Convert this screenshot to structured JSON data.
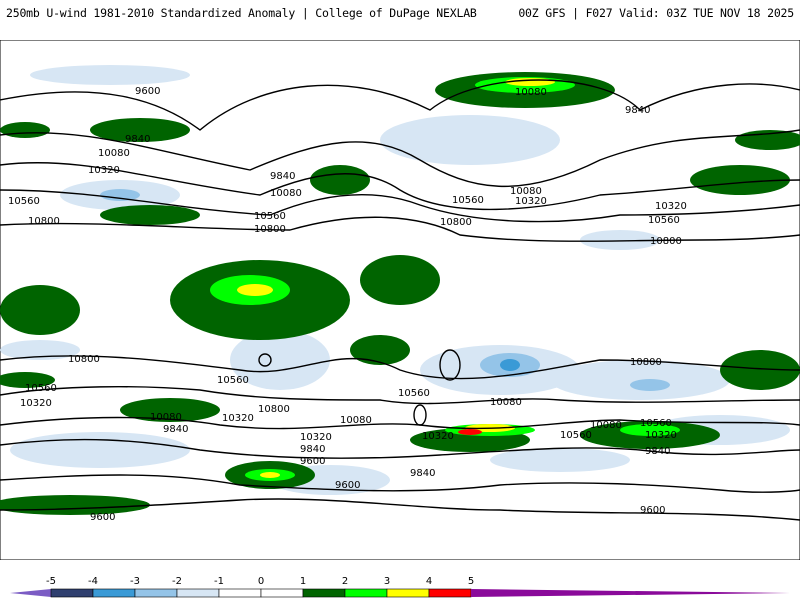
{
  "header": {
    "title_left": "250mb U-wind 1981-2010 Standardized Anomaly | College of DuPage NEXLAB",
    "title_right": "00Z GFS | F027 Valid: 03Z TUE NOV 18 2025"
  },
  "contour_labels": [
    "9600",
    "10080",
    "9840",
    "10080",
    "10320",
    "10560",
    "10800",
    "9840",
    "10080",
    "10560",
    "10800",
    "10560",
    "10800",
    "10080",
    "10320",
    "9840",
    "10320",
    "10560",
    "10800",
    "10800",
    "10560",
    "10320",
    "10080",
    "9840",
    "10560",
    "10320",
    "10800",
    "10080",
    "9840",
    "10560",
    "10320",
    "10080",
    "9840",
    "9600",
    "9600",
    "9600",
    "10080",
    "10320",
    "10560",
    "10320",
    "9840",
    "9600",
    "10800",
    "10560"
  ],
  "colorbar": {
    "ticks": [
      "-5",
      "-4",
      "-3",
      "-2",
      "-1",
      "0",
      "1",
      "2",
      "3",
      "4",
      "5"
    ],
    "colors": [
      "#2f3f6f",
      "#3a9ad6",
      "#94c4e8",
      "#d7e6f4",
      "#ffffff",
      "#ffffff",
      "#006400",
      "#00ff00",
      "#ffff00",
      "#ff0000"
    ],
    "under_color": "#7b5cc4",
    "over_color": "#8a0a9a"
  }
}
